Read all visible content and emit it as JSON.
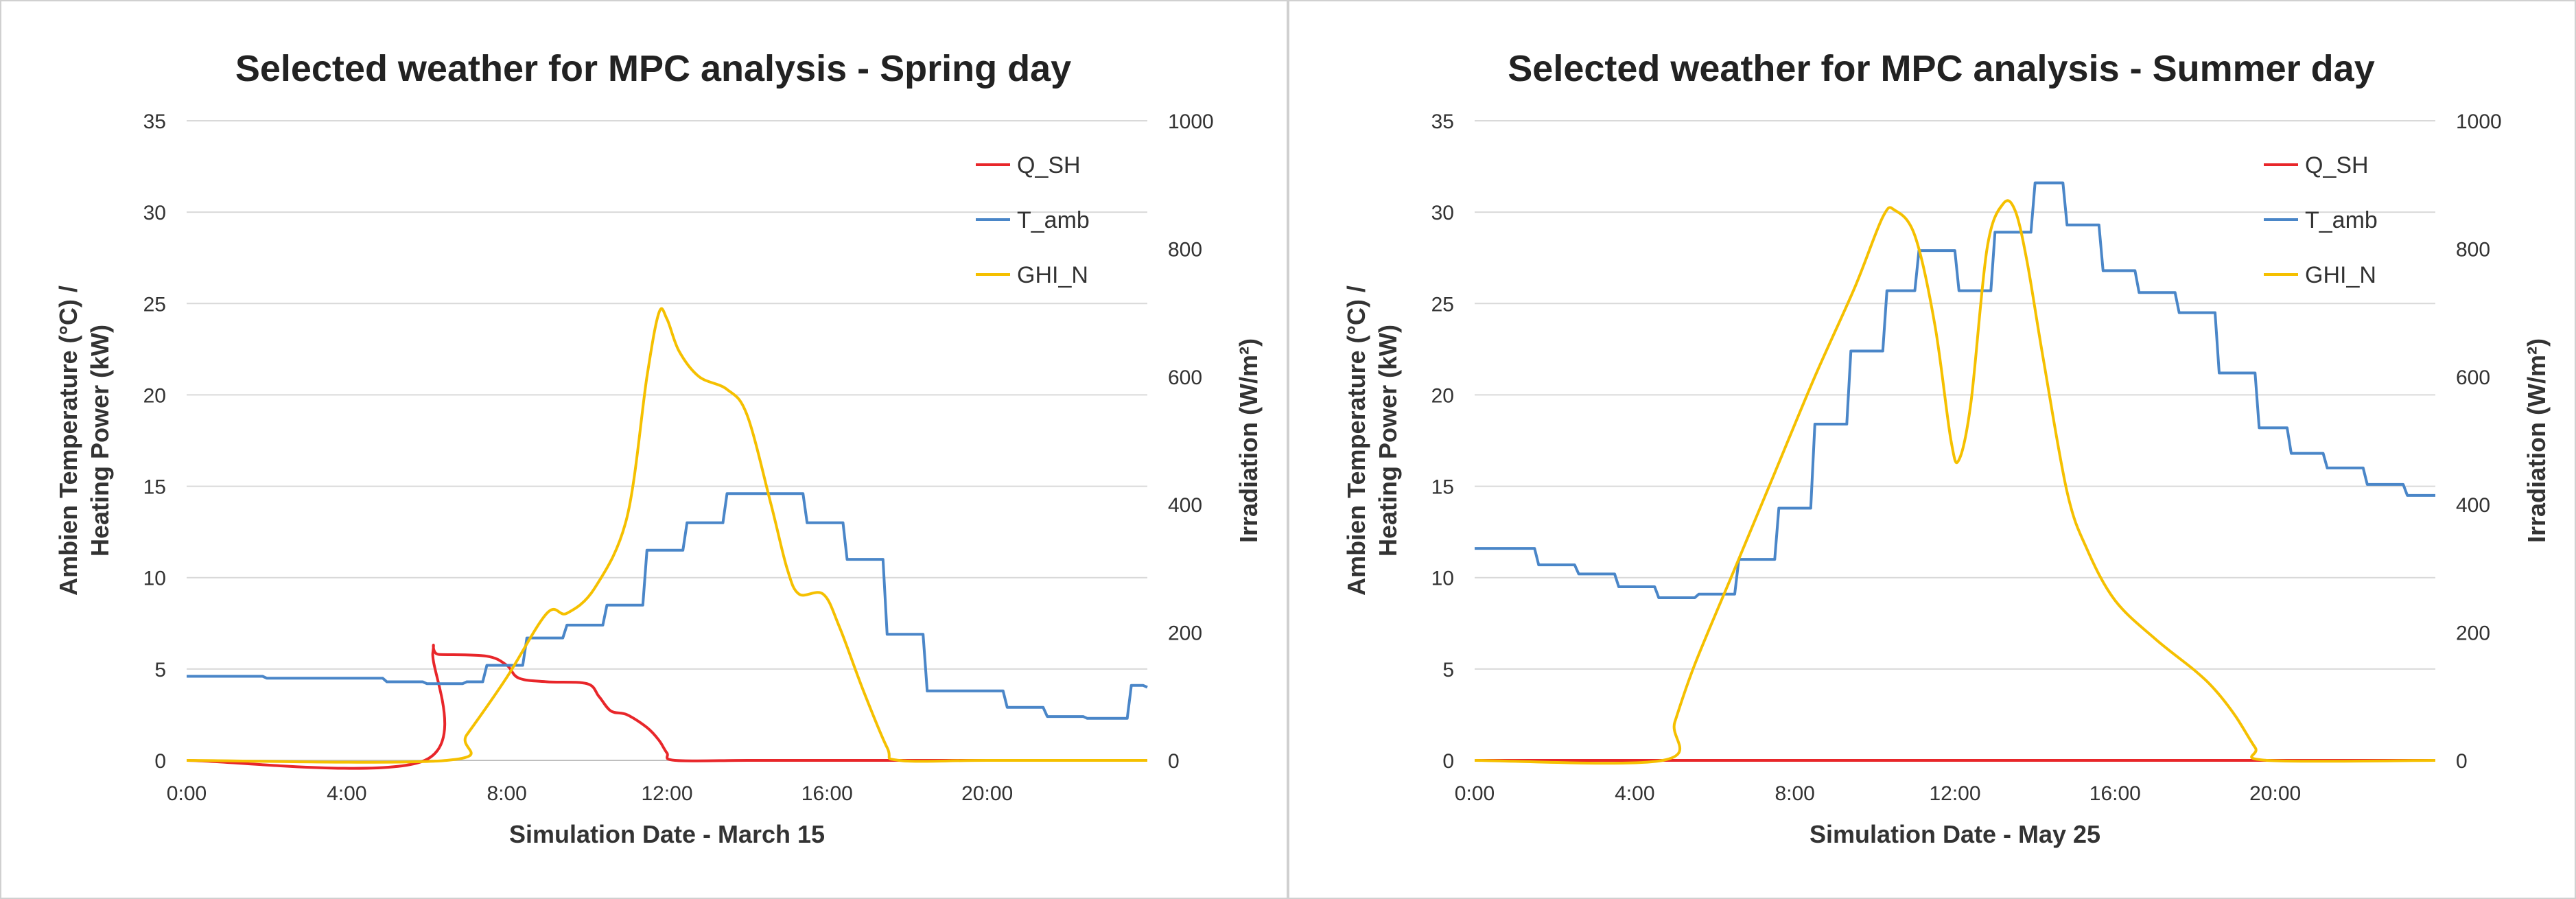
{
  "colors": {
    "q_sh": "#e8262a",
    "t_amb": "#4a86c8",
    "ghi_n": "#f5c000",
    "grid": "#d9d9d9",
    "axis": "#bfbfbf"
  },
  "chart_data": [
    {
      "type": "line",
      "title": "Selected weather for MPC analysis - Spring day",
      "xlabel": "Simulation Date - March 15",
      "ylabel_left": [
        "Ambien Temperature (°C) /",
        "Heating Power (kW)"
      ],
      "ylabel_right": "Irradiation (W/m²)",
      "xlim": [
        0,
        24
      ],
      "ylim_left": [
        0,
        35
      ],
      "ylim_right": [
        0,
        1000
      ],
      "x_ticks": [
        0,
        4,
        8,
        12,
        16,
        20
      ],
      "x_tick_labels": [
        "0:00",
        "4:00",
        "8:00",
        "12:00",
        "16:00",
        "20:00"
      ],
      "y_ticks_left": [
        "0",
        "5",
        "10",
        "15",
        "20",
        "25",
        "30",
        "35"
      ],
      "y_ticks_right": [
        "0",
        "200",
        "400",
        "600",
        "800",
        "1000"
      ],
      "legend": [
        "Q_SH",
        "T_amb",
        "GHI_N"
      ],
      "series": [
        {
          "name": "Q_SH",
          "axis": "left",
          "color_key": "q_sh",
          "x": [
            0,
            5.95,
            6.15,
            6.3,
            7.5,
            8.0,
            8.3,
            9.0,
            10.0,
            10.3,
            10.6,
            11.0,
            11.5,
            11.8,
            12.0,
            12.2,
            14,
            16,
            18,
            20,
            22,
            24
          ],
          "y": [
            0,
            0,
            5.9,
            5.8,
            5.7,
            5.2,
            4.5,
            4.3,
            4.2,
            3.5,
            2.7,
            2.5,
            1.8,
            1.1,
            0.4,
            0,
            0,
            0,
            0,
            0,
            0,
            0
          ]
        },
        {
          "name": "T_amb",
          "axis": "left",
          "color_key": "t_amb",
          "step": true,
          "x": [
            0,
            1,
            2,
            3,
            4,
            5,
            6,
            7,
            7.5,
            8.5,
            9.5,
            10.5,
            11.5,
            12.5,
            13.5,
            15.5,
            16.5,
            17.5,
            18.5,
            19.5,
            20.5,
            21.5,
            22.5,
            23.6,
            24
          ],
          "y": [
            4.6,
            4.6,
            4.5,
            4.5,
            4.5,
            4.3,
            4.2,
            4.3,
            5.2,
            6.7,
            7.4,
            8.5,
            11.5,
            13.0,
            14.6,
            13.0,
            11.0,
            6.9,
            3.8,
            3.8,
            2.9,
            2.4,
            2.3,
            4.1,
            4.0
          ]
        },
        {
          "name": "GHI_N",
          "axis": "right",
          "color_key": "ghi_n",
          "x": [
            0,
            6.5,
            7.0,
            8.0,
            9.0,
            9.5,
            10.2,
            11.0,
            11.5,
            11.8,
            12.0,
            12.3,
            12.8,
            13.5,
            14.0,
            14.6,
            15.0,
            15.3,
            15.9,
            16.3,
            16.9,
            17.5,
            17.8,
            20,
            24
          ],
          "y": [
            0,
            0,
            40,
            130,
            230,
            230,
            270,
            380,
            600,
            700,
            690,
            640,
            600,
            580,
            540,
            400,
            300,
            260,
            260,
            210,
            110,
            20,
            0,
            0,
            0
          ]
        }
      ]
    },
    {
      "type": "line",
      "title": "Selected weather for MPC analysis - Summer day",
      "xlabel": "Simulation Date - May 25",
      "ylabel_left": [
        "Ambien Temperature (°C) /",
        "Heating Power (kW)"
      ],
      "ylabel_right": "Irradiation (W/m²)",
      "xlim": [
        0,
        24
      ],
      "ylim_left": [
        0,
        35
      ],
      "ylim_right": [
        0,
        1000
      ],
      "x_ticks": [
        0,
        4,
        8,
        12,
        16,
        20
      ],
      "x_tick_labels": [
        "0:00",
        "4:00",
        "8:00",
        "12:00",
        "16:00",
        "20:00"
      ],
      "y_ticks_left": [
        "0",
        "5",
        "10",
        "15",
        "20",
        "25",
        "30",
        "35"
      ],
      "y_ticks_right": [
        "0",
        "200",
        "400",
        "600",
        "800",
        "1000"
      ],
      "legend": [
        "Q_SH",
        "T_amb",
        "GHI_N"
      ],
      "series": [
        {
          "name": "Q_SH",
          "axis": "left",
          "color_key": "q_sh",
          "x": [
            0,
            24
          ],
          "y": [
            0,
            0
          ]
        },
        {
          "name": "T_amb",
          "axis": "left",
          "color_key": "t_amb",
          "step": true,
          "x": [
            0,
            0.6,
            1.6,
            2.6,
            3.6,
            4.6,
            5.6,
            6.6,
            7.6,
            8.5,
            9.4,
            10.3,
            11.1,
            12.1,
            13.0,
            14.0,
            14.8,
            15.7,
            16.6,
            17.6,
            18.6,
            19.6,
            20.4,
            21.3,
            22.3,
            23.3,
            24
          ],
          "y": [
            11.6,
            11.6,
            10.7,
            10.2,
            9.5,
            8.9,
            9.1,
            11.0,
            13.8,
            18.4,
            22.4,
            25.7,
            27.9,
            25.7,
            28.9,
            31.6,
            29.3,
            26.8,
            25.6,
            24.5,
            21.2,
            18.2,
            16.8,
            16.0,
            15.1,
            14.5,
            14.5
          ]
        },
        {
          "name": "GHI_N",
          "axis": "right",
          "color_key": "ghi_n",
          "x": [
            0,
            4.7,
            5.0,
            5.5,
            6.5,
            7.5,
            8.5,
            9.5,
            10.2,
            10.5,
            11.0,
            11.5,
            11.9,
            12.1,
            12.4,
            12.8,
            13.2,
            13.5,
            13.8,
            14.2,
            14.8,
            15.3,
            16.0,
            17.0,
            18.0,
            18.5,
            19.0,
            19.5,
            19.8,
            24
          ],
          "y": [
            0,
            0,
            60,
            150,
            300,
            450,
            600,
            740,
            850,
            860,
            820,
            680,
            500,
            470,
            560,
            800,
            870,
            860,
            780,
            630,
            420,
            330,
            250,
            190,
            140,
            110,
            70,
            20,
            0,
            0
          ]
        }
      ]
    }
  ]
}
